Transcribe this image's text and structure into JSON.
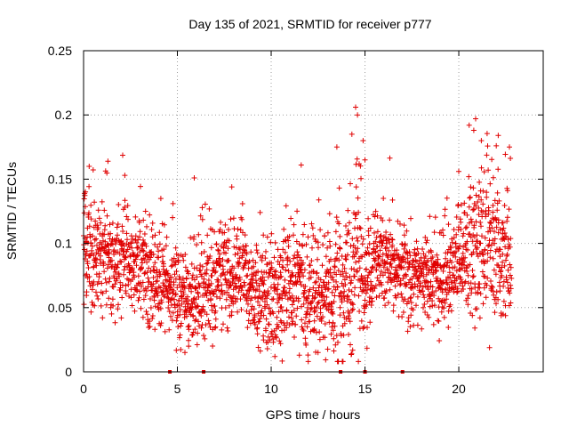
{
  "chart_data": {
    "type": "scatter",
    "title": "Day 135 of 2021, SRMTID for receiver p777",
    "xlabel": "GPS time / hours",
    "ylabel": "SRMTID / TECUs",
    "xlim": [
      0,
      24.5
    ],
    "ylim": [
      0,
      0.25
    ],
    "xticks": [
      0,
      5,
      10,
      15,
      20
    ],
    "xtick_labels": [
      "0",
      "5",
      "10",
      "15",
      "20"
    ],
    "yticks": [
      0,
      0.05,
      0.1,
      0.15,
      0.2,
      0.25
    ],
    "ytick_labels": [
      "0",
      "0.05",
      "0.1",
      "0.15",
      "0.2",
      "0.25"
    ],
    "grid": true,
    "marker": "+",
    "series": [
      {
        "name": "SRMTID",
        "color": "#e00000",
        "trend": {
          "x": [
            0,
            0.5,
            1,
            1.5,
            2,
            2.5,
            3,
            3.5,
            4,
            4.5,
            5,
            5.5,
            6,
            6.5,
            7,
            7.5,
            8,
            8.5,
            9,
            9.5,
            10,
            10.5,
            11,
            11.5,
            12,
            12.5,
            13,
            13.5,
            14,
            14.5,
            15,
            15.5,
            16,
            16.5,
            17,
            17.5,
            18,
            18.5,
            19,
            19.5,
            20,
            20.5,
            21,
            21.5,
            22,
            22.5,
            22.8
          ],
          "y": [
            0.098,
            0.092,
            0.095,
            0.088,
            0.086,
            0.085,
            0.082,
            0.078,
            0.072,
            0.068,
            0.062,
            0.058,
            0.062,
            0.068,
            0.072,
            0.075,
            0.078,
            0.072,
            0.066,
            0.06,
            0.055,
            0.06,
            0.066,
            0.07,
            0.068,
            0.065,
            0.064,
            0.062,
            0.066,
            0.085,
            0.075,
            0.08,
            0.085,
            0.084,
            0.08,
            0.075,
            0.072,
            0.07,
            0.074,
            0.078,
            0.088,
            0.092,
            0.098,
            0.1,
            0.097,
            0.094,
            0.092
          ]
        },
        "spread": {
          "x": [
            0,
            1,
            2,
            3,
            4,
            5,
            6,
            7,
            8,
            9,
            10,
            11,
            12,
            13,
            14,
            14.5,
            15,
            16,
            17,
            18,
            19,
            20,
            21,
            21.5,
            22,
            22.8
          ],
          "y": [
            0.022,
            0.024,
            0.022,
            0.022,
            0.02,
            0.02,
            0.022,
            0.022,
            0.022,
            0.02,
            0.022,
            0.024,
            0.024,
            0.024,
            0.028,
            0.038,
            0.02,
            0.018,
            0.018,
            0.018,
            0.02,
            0.022,
            0.03,
            0.032,
            0.026,
            0.024
          ]
        },
        "n_points": 2400,
        "peaks": [
          {
            "x": 1.3,
            "y": 0.164
          },
          {
            "x": 2.2,
            "y": 0.153
          },
          {
            "x": 5.9,
            "y": 0.151
          },
          {
            "x": 7.9,
            "y": 0.144
          },
          {
            "x": 11.6,
            "y": 0.161
          },
          {
            "x": 13.5,
            "y": 0.175
          },
          {
            "x": 14.5,
            "y": 0.206
          },
          {
            "x": 14.6,
            "y": 0.2
          },
          {
            "x": 14.3,
            "y": 0.185
          },
          {
            "x": 14.9,
            "y": 0.18
          },
          {
            "x": 15.0,
            "y": 0.165
          },
          {
            "x": 20.9,
            "y": 0.197
          },
          {
            "x": 20.8,
            "y": 0.188
          },
          {
            "x": 21.2,
            "y": 0.18
          },
          {
            "x": 22.1,
            "y": 0.184
          },
          {
            "x": 22.0,
            "y": 0.176
          },
          {
            "x": 22.7,
            "y": 0.175
          },
          {
            "x": 0.1,
            "y": 0.14
          },
          {
            "x": 0.3,
            "y": 0.16
          },
          {
            "x": 20.0,
            "y": 0.156
          }
        ],
        "lows": [
          {
            "x": 5.4,
            "y": 0.015
          },
          {
            "x": 5.6,
            "y": 0.02
          },
          {
            "x": 10.2,
            "y": 0.012
          },
          {
            "x": 9.8,
            "y": 0.018
          },
          {
            "x": 11.5,
            "y": 0.013
          },
          {
            "x": 10.5,
            "y": 0.022
          }
        ]
      }
    ],
    "data_gaps_x": [
      4.6,
      6.4,
      13.7,
      15.0,
      17.0
    ]
  }
}
